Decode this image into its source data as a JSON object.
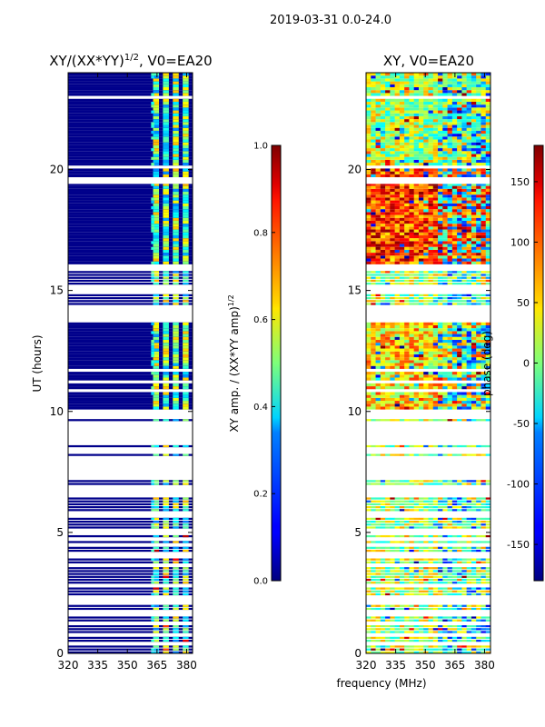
{
  "figure": {
    "suptitle": "2019-03-31 0.0-24.0",
    "xlabel": "frequency (MHz)"
  },
  "chart_data": [
    {
      "type": "heatmap",
      "title_main": "XY/(XX*YY)",
      "title_exp": "1/2",
      "title_tail": ", V0=EA20",
      "xlabel": "",
      "ylabel": "UT (hours)",
      "xlim": [
        320,
        383
      ],
      "ylim": [
        0,
        24
      ],
      "xticks": [
        320,
        335,
        350,
        365,
        380
      ],
      "yticks": [
        0,
        5,
        10,
        15,
        20
      ],
      "colorbar": {
        "label_main": "XY amp. / (XX*YY amp)",
        "label_exp": "1/2",
        "range": [
          0.0,
          1.0
        ],
        "ticks": [
          "0.0",
          "0.2",
          "0.4",
          "0.6",
          "0.8",
          "1.0"
        ],
        "colormap": "jet"
      },
      "band_freqs_mhz": [
        363,
        366,
        368,
        371,
        373,
        376,
        378,
        381
      ]
    },
    {
      "type": "heatmap",
      "title_main": "XY, V0=EA20",
      "xlabel": "",
      "ylabel": "",
      "xlim": [
        320,
        383
      ],
      "ylim": [
        0,
        24
      ],
      "xticks": [
        320,
        335,
        350,
        365,
        380
      ],
      "yticks": [
        0,
        5,
        10,
        15,
        20
      ],
      "colorbar": {
        "label": "phase (deg)",
        "range": [
          -180,
          180
        ],
        "ticks": [
          "-150",
          "-100",
          "-50",
          "0",
          "50",
          "100",
          "150"
        ],
        "tick_values": [
          -150,
          -100,
          -50,
          0,
          50,
          100,
          150
        ],
        "colormap": "jet"
      }
    }
  ],
  "time_coverage": {
    "gaps_hours": [
      [
        6.4,
        6.9
      ],
      [
        7.2,
        8.0
      ],
      [
        8.6,
        9.5
      ],
      [
        9.6,
        9.9
      ],
      [
        13.7,
        14.0
      ],
      [
        15.8,
        16.0
      ],
      [
        19.4,
        19.6
      ]
    ],
    "dense_blocks_hours": [
      [
        15.9,
        19.3
      ],
      [
        19.5,
        24.0
      ],
      [
        10.0,
        13.6
      ],
      [
        16.0,
        19.3
      ]
    ]
  }
}
